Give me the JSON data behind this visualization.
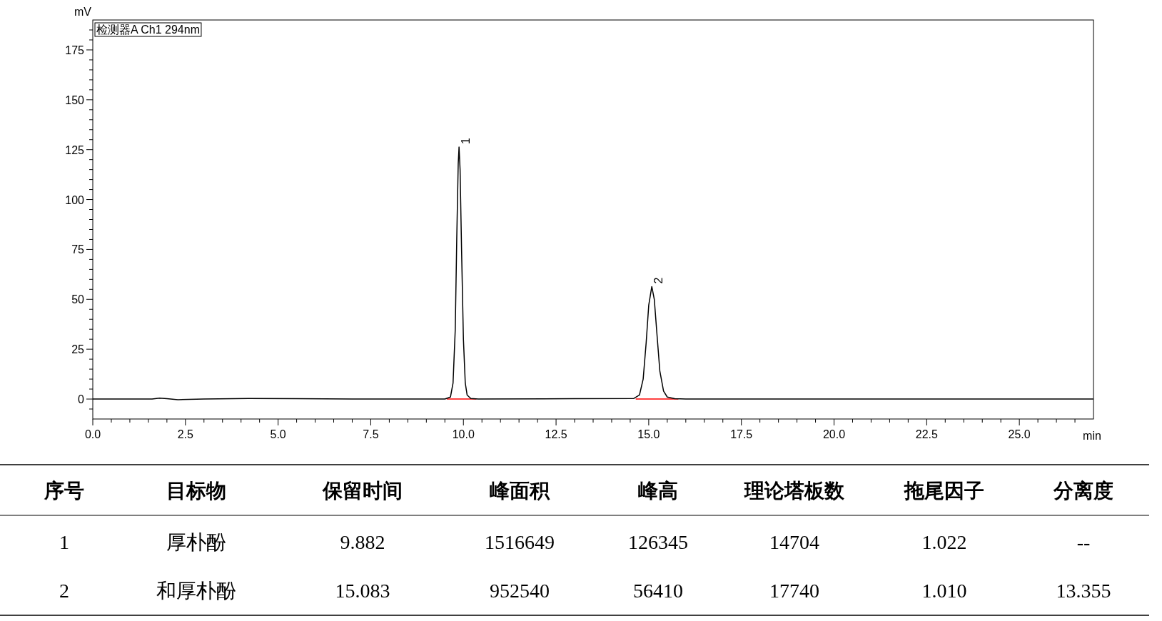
{
  "chart_data": {
    "type": "line",
    "xlabel": "min",
    "ylabel": "mV",
    "legend": "top left",
    "grid": false,
    "xlim": [
      0,
      27
    ],
    "ylim": [
      -10,
      190
    ],
    "xticks": [
      {
        "value": 0,
        "label": "0.0"
      },
      {
        "value": 0.5,
        "label": null
      },
      {
        "value": 1,
        "label": null
      },
      {
        "value": 1.5,
        "label": null
      },
      {
        "value": 2,
        "label": null
      },
      {
        "value": 2.5,
        "label": "2.5"
      },
      {
        "value": 3,
        "label": null
      },
      {
        "value": 3.5,
        "label": null
      },
      {
        "value": 4,
        "label": null
      },
      {
        "value": 4.5,
        "label": null
      },
      {
        "value": 5,
        "label": "5.0"
      },
      {
        "value": 5.5,
        "label": null
      },
      {
        "value": 6,
        "label": null
      },
      {
        "value": 6.5,
        "label": null
      },
      {
        "value": 7,
        "label": null
      },
      {
        "value": 7.5,
        "label": "7.5"
      },
      {
        "value": 8,
        "label": null
      },
      {
        "value": 8.5,
        "label": null
      },
      {
        "value": 9,
        "label": null
      },
      {
        "value": 9.5,
        "label": null
      },
      {
        "value": 10,
        "label": "10.0"
      },
      {
        "value": 10.5,
        "label": null
      },
      {
        "value": 11,
        "label": null
      },
      {
        "value": 11.5,
        "label": null
      },
      {
        "value": 12,
        "label": null
      },
      {
        "value": 12.5,
        "label": "12.5"
      },
      {
        "value": 13,
        "label": null
      },
      {
        "value": 13.5,
        "label": null
      },
      {
        "value": 14,
        "label": null
      },
      {
        "value": 14.5,
        "label": null
      },
      {
        "value": 15,
        "label": "15.0"
      },
      {
        "value": 15.5,
        "label": null
      },
      {
        "value": 16,
        "label": null
      },
      {
        "value": 16.5,
        "label": null
      },
      {
        "value": 17,
        "label": null
      },
      {
        "value": 17.5,
        "label": "17.5"
      },
      {
        "value": 18,
        "label": null
      },
      {
        "value": 18.5,
        "label": null
      },
      {
        "value": 19,
        "label": null
      },
      {
        "value": 19.5,
        "label": null
      },
      {
        "value": 20,
        "label": "20.0"
      },
      {
        "value": 20.5,
        "label": null
      },
      {
        "value": 21,
        "label": null
      },
      {
        "value": 21.5,
        "label": null
      },
      {
        "value": 22,
        "label": null
      },
      {
        "value": 22.5,
        "label": "22.5"
      },
      {
        "value": 23,
        "label": null
      },
      {
        "value": 23.5,
        "label": null
      },
      {
        "value": 24,
        "label": null
      },
      {
        "value": 24.5,
        "label": null
      },
      {
        "value": 25,
        "label": "25.0"
      },
      {
        "value": 25.5,
        "label": null
      },
      {
        "value": 26,
        "label": null
      },
      {
        "value": 26.5,
        "label": null
      }
    ],
    "yticks": [
      {
        "value": -5,
        "label": null
      },
      0,
      {
        "value": 5,
        "label": null
      },
      {
        "value": 10,
        "label": null
      },
      {
        "value": 15,
        "label": null
      },
      {
        "value": 20,
        "label": null
      },
      25,
      {
        "value": 30,
        "label": null
      },
      {
        "value": 35,
        "label": null
      },
      {
        "value": 40,
        "label": null
      },
      {
        "value": 45,
        "label": null
      },
      50,
      {
        "value": 55,
        "label": null
      },
      {
        "value": 60,
        "label": null
      },
      {
        "value": 65,
        "label": null
      },
      {
        "value": 70,
        "label": null
      },
      75,
      {
        "value": 80,
        "label": null
      },
      {
        "value": 85,
        "label": null
      },
      {
        "value": 90,
        "label": null
      },
      {
        "value": 95,
        "label": null
      },
      100,
      {
        "value": 105,
        "label": null
      },
      {
        "value": 110,
        "label": null
      },
      {
        "value": 115,
        "label": null
      },
      {
        "value": 120,
        "label": null
      },
      125,
      {
        "value": 130,
        "label": null
      },
      {
        "value": 135,
        "label": null
      },
      {
        "value": 140,
        "label": null
      },
      {
        "value": 145,
        "label": null
      },
      150,
      {
        "value": 155,
        "label": null
      },
      {
        "value": 160,
        "label": null
      },
      {
        "value": 165,
        "label": null
      },
      {
        "value": 170,
        "label": null
      },
      175,
      {
        "value": 180,
        "label": null
      },
      {
        "value": 185,
        "label": null
      }
    ],
    "series": [
      {
        "name": "检测器A Ch1 294nm",
        "color": "#000000",
        "x": [
          0,
          1.6,
          1.8,
          2.0,
          2.3,
          3,
          4.2,
          5.5,
          7,
          9.5,
          9.65,
          9.72,
          9.78,
          9.82,
          9.86,
          9.882,
          9.91,
          9.95,
          10.0,
          10.05,
          10.1,
          10.2,
          10.4,
          13,
          14.6,
          14.75,
          14.85,
          14.93,
          15.0,
          15.083,
          15.15,
          15.22,
          15.3,
          15.4,
          15.5,
          15.7,
          16,
          27
        ],
        "values": [
          0,
          0,
          0.5,
          0.2,
          -0.3,
          0,
          0.3,
          0.2,
          0,
          0,
          1,
          8,
          35,
          80,
          118,
          126.3,
          115,
          75,
          30,
          8,
          2,
          0.3,
          0,
          0.2,
          0.3,
          2,
          10,
          28,
          47,
          56.4,
          50,
          33,
          14,
          4,
          1,
          0.2,
          0,
          0
        ]
      },
      {
        "color": "#ff0000",
        "x": [
          9.55,
          10.35
        ],
        "values": [
          0,
          0
        ]
      },
      {
        "color": "#ff0000",
        "x": [
          14.65,
          15.8
        ],
        "values": [
          0,
          0
        ]
      }
    ],
    "annotations": [
      {
        "text": "1",
        "x": 9.882,
        "y": 126.3
      },
      {
        "text": "2",
        "x": 15.083,
        "y": 56.4
      },
      "序号",
      "目标物",
      "保留时间",
      "峰面积",
      "峰高",
      "理论塔板数",
      "拖尾因子",
      "分离度",
      "1",
      "厚朴酚",
      "9.882",
      "1516649",
      "126345",
      "14704",
      "1.022",
      "--",
      "2",
      "和厚朴酚",
      "15.083",
      "952540",
      "56410",
      "17740",
      "1.010",
      "13.355"
    ]
  }
}
